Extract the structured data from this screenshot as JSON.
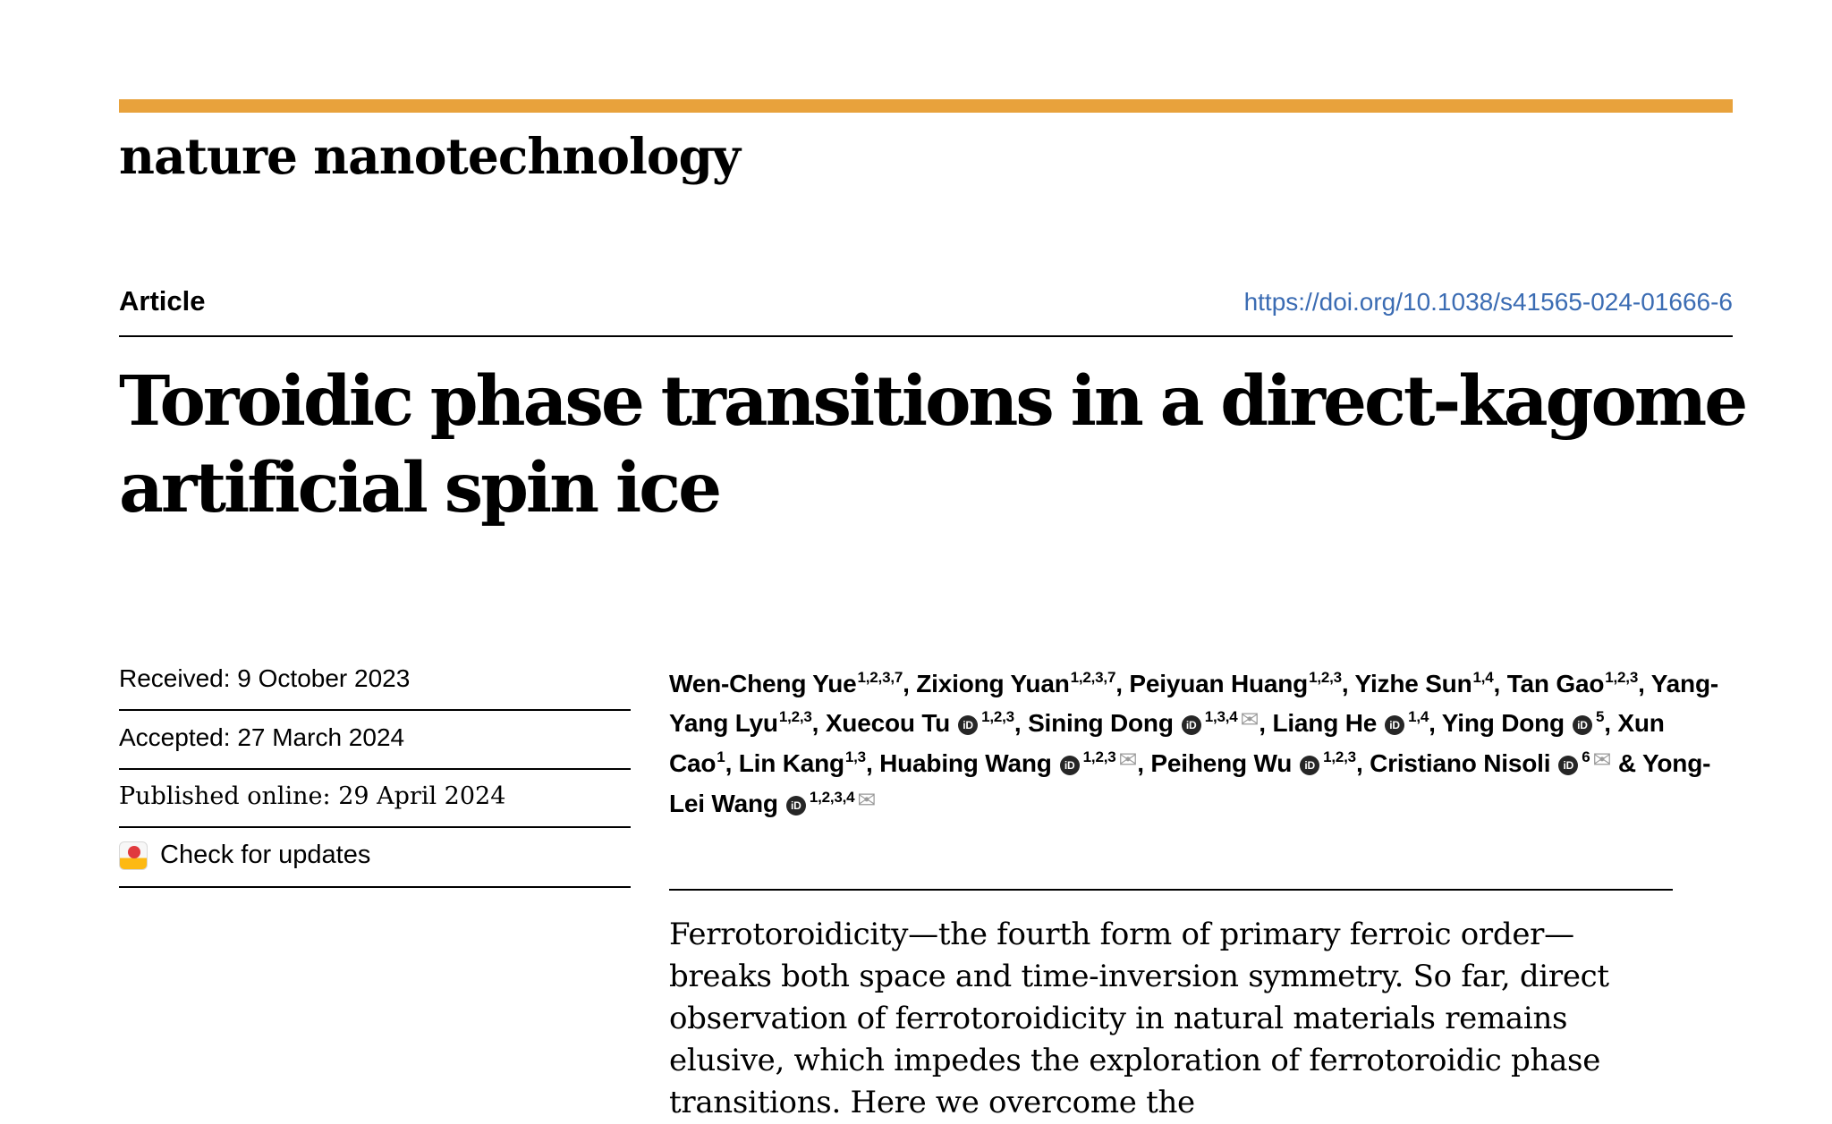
{
  "header": {
    "journal": "nature nanotechnology",
    "article_label": "Article",
    "doi": "https://doi.org/10.1038/s41565-024-01666-6",
    "title_line1": "Toroidic phase transitions in a direct-kagome",
    "title_line2": "artificial spin ice"
  },
  "meta": {
    "received_label": "Received:",
    "received_date": "9 October 2023",
    "accepted_label": "Accepted:",
    "accepted_date": "27 March 2024",
    "published_label": "Published online:",
    "published_date": "29 April 2024",
    "check_updates": "Check for updates"
  },
  "authors": {
    "orcid_label": "iD",
    "list": [
      {
        "name": "Wen-Cheng Yue",
        "sup": "1,2,3,7",
        "orcid": false,
        "mail": false,
        "after": ", "
      },
      {
        "name": "Zixiong Yuan",
        "sup": "1,2,3,7",
        "orcid": false,
        "mail": false,
        "after": ", "
      },
      {
        "name": "Peiyuan Huang",
        "sup": "1,2,3",
        "orcid": false,
        "mail": false,
        "after": ", "
      },
      {
        "name": "Yizhe Sun",
        "sup": "1,4",
        "orcid": false,
        "mail": false,
        "after": ", "
      },
      {
        "name": "Tan Gao",
        "sup": "1,2,3",
        "orcid": false,
        "mail": false,
        "after": ", "
      },
      {
        "name": "Yang-Yang Lyu",
        "sup": "1,2,3",
        "orcid": false,
        "mail": false,
        "after": ", "
      },
      {
        "name": "Xuecou Tu",
        "sup": "1,2,3",
        "orcid": true,
        "mail": false,
        "after": ", "
      },
      {
        "name": "Sining Dong",
        "sup": "1,3,4",
        "orcid": true,
        "mail": true,
        "after": ", "
      },
      {
        "name": "Liang He",
        "sup": "1,4",
        "orcid": true,
        "mail": false,
        "after": ", "
      },
      {
        "name": "Ying Dong",
        "sup": "5",
        "orcid": true,
        "mail": false,
        "after": ", "
      },
      {
        "name": "Xun Cao",
        "sup": "1",
        "orcid": false,
        "mail": false,
        "after": ", "
      },
      {
        "name": "Lin Kang",
        "sup": "1,3",
        "orcid": false,
        "mail": false,
        "after": ", "
      },
      {
        "name": "Huabing Wang",
        "sup": "1,2,3",
        "orcid": true,
        "mail": true,
        "after": ", "
      },
      {
        "name": "Peiheng Wu",
        "sup": "1,2,3",
        "orcid": true,
        "mail": false,
        "after": ", "
      },
      {
        "name": "Cristiano Nisoli",
        "sup": "6",
        "orcid": true,
        "mail": true,
        "after": " & "
      },
      {
        "name": "Yong-Lei Wang",
        "sup": "1,2,3,4",
        "orcid": true,
        "mail": true,
        "after": ""
      }
    ]
  },
  "abstract": {
    "text": "Ferrotoroidicity—the fourth form of primary ferroic order—breaks both space and time-inversion symmetry. So far, direct observation of ferrotoroidicity in natural materials remains elusive, which impedes the exploration of ferrotoroidic phase transitions. Here we overcome the"
  },
  "colors": {
    "brand_bar": "#e8a23c",
    "link_blue": "#3b6cb3",
    "orcid_bg": "#262626",
    "crossmark_yellow": "#fdb913",
    "crossmark_red": "#e03a3e"
  }
}
